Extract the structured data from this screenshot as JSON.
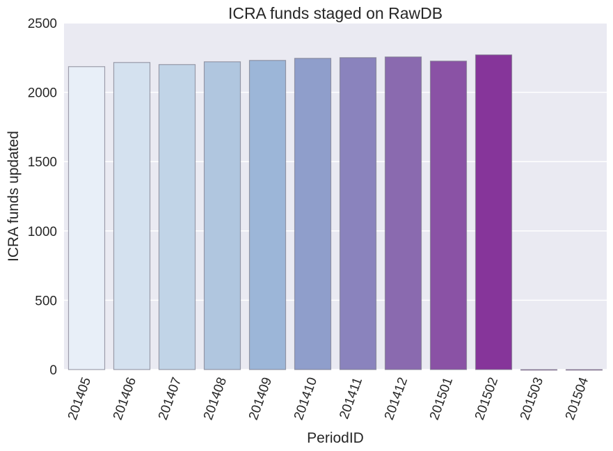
{
  "chart_data": {
    "type": "bar",
    "title": "ICRA funds staged on RawDB",
    "xlabel": "PeriodID",
    "ylabel": "ICRA funds updated",
    "ylim": [
      0,
      2500
    ],
    "yticks": [
      "0",
      "500",
      "1000",
      "1500",
      "2000",
      "2500"
    ],
    "grid": true,
    "categories": [
      "201405",
      "201406",
      "201407",
      "201408",
      "201409",
      "201410",
      "201411",
      "201412",
      "201501",
      "201502",
      "201503",
      "201504"
    ],
    "values": [
      2185,
      2215,
      2200,
      2220,
      2230,
      2245,
      2250,
      2255,
      2225,
      2270,
      0,
      0
    ],
    "colors": [
      "#e8eff8",
      "#d4e1ef",
      "#c1d4e7",
      "#b0c6df",
      "#9cb6d8",
      "#8f9ecb",
      "#8a83bd",
      "#8a6aaf",
      "#8a52a5",
      "#86359a",
      "#7e1d8a",
      "#77147f"
    ],
    "background": "#eaeaf2",
    "gridline_color": "#ffffff"
  }
}
